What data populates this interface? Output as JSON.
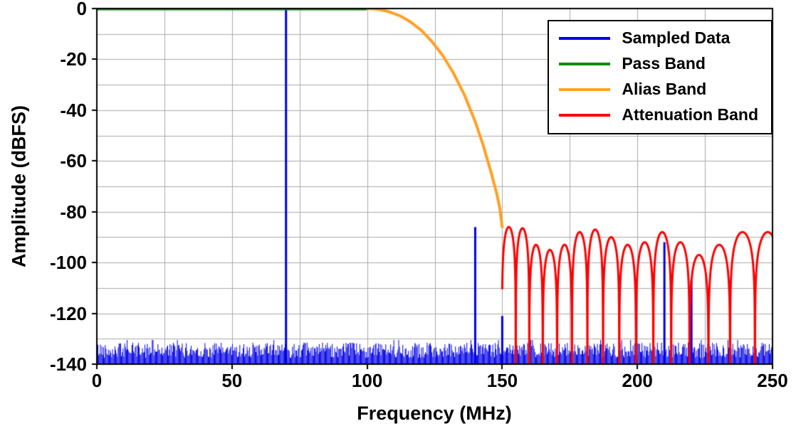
{
  "chart_data": {
    "type": "line",
    "title": "",
    "xlabel": "Frequency (MHz)",
    "ylabel": "Amplitude (dBFS)",
    "xlim": [
      0,
      250
    ],
    "ylim": [
      -140,
      0
    ],
    "x_major_ticks": [
      0,
      50,
      100,
      150,
      200,
      250
    ],
    "x_grid_step": 25,
    "y_major_ticks": [
      0,
      -20,
      -40,
      -60,
      -80,
      -100,
      -120,
      -140
    ],
    "y_grid_step": 10,
    "grid": true,
    "grid_color": "#a9a9a9",
    "axis_color": "#000000",
    "background": "#ffffff",
    "legend": {
      "position": "top-right",
      "entries": [
        {
          "label": "Sampled Data",
          "color": "#0000e6"
        },
        {
          "label": "Pass Band",
          "color": "#0f8a0f"
        },
        {
          "label": "Alias Band",
          "color": "#ffa024"
        },
        {
          "label": "Attenuation Band",
          "color": "#fe0000"
        }
      ]
    },
    "series": {
      "pass_band": {
        "name": "Pass Band",
        "color": "#0f8a0f",
        "points": [
          [
            0,
            0
          ],
          [
            100,
            0
          ]
        ]
      },
      "alias_band": {
        "name": "Alias Band",
        "color": "#ffa024",
        "points": [
          [
            100,
            0
          ],
          [
            104,
            -0.3
          ],
          [
            108,
            -1.2
          ],
          [
            112,
            -2.8
          ],
          [
            116,
            -5.2
          ],
          [
            120,
            -8.5
          ],
          [
            124,
            -13
          ],
          [
            128,
            -18.5
          ],
          [
            132,
            -25.5
          ],
          [
            136,
            -34
          ],
          [
            140,
            -44.5
          ],
          [
            143,
            -54
          ],
          [
            146,
            -65
          ],
          [
            148,
            -73
          ],
          [
            149,
            -78
          ],
          [
            150,
            -86
          ]
        ]
      },
      "attenuation_band": {
        "name": "Attenuation Band",
        "color": "#fe0000",
        "x_range": [
          150,
          250
        ],
        "floor": -140,
        "lobes": [
          {
            "from": 149.9,
            "to": 155.0,
            "peak": -86
          },
          {
            "from": 155.0,
            "to": 160.0,
            "peak": -86.5
          },
          {
            "from": 160.0,
            "to": 165.0,
            "peak": -93
          },
          {
            "from": 165.0,
            "to": 170.3,
            "peak": -95
          },
          {
            "from": 170.3,
            "to": 175.8,
            "peak": -93
          },
          {
            "from": 175.8,
            "to": 181.5,
            "peak": -88
          },
          {
            "from": 181.5,
            "to": 187.3,
            "peak": -87
          },
          {
            "from": 187.3,
            "to": 193.3,
            "peak": -90
          },
          {
            "from": 193.3,
            "to": 199.5,
            "peak": -93
          },
          {
            "from": 199.5,
            "to": 205.9,
            "peak": -92
          },
          {
            "from": 205.9,
            "to": 212.5,
            "peak": -88
          },
          {
            "from": 212.5,
            "to": 219.3,
            "peak": -92
          },
          {
            "from": 219.3,
            "to": 226.3,
            "peak": -97
          },
          {
            "from": 226.3,
            "to": 234.3,
            "peak": -93
          },
          {
            "from": 234.3,
            "to": 243.5,
            "peak": -88
          },
          {
            "from": 243.5,
            "to": 253.0,
            "peak": -88
          }
        ]
      },
      "sampled_data": {
        "name": "Sampled Data",
        "color": "#0000e6",
        "spikes": [
          [
            70,
            -0.3
          ],
          [
            140,
            -86
          ],
          [
            150,
            -121
          ],
          [
            210,
            -92
          ],
          [
            220,
            -107
          ]
        ],
        "noise_floor": {
          "min": -140,
          "max": -131.5,
          "x_step": 0.3,
          "seed": 42
        }
      }
    }
  }
}
